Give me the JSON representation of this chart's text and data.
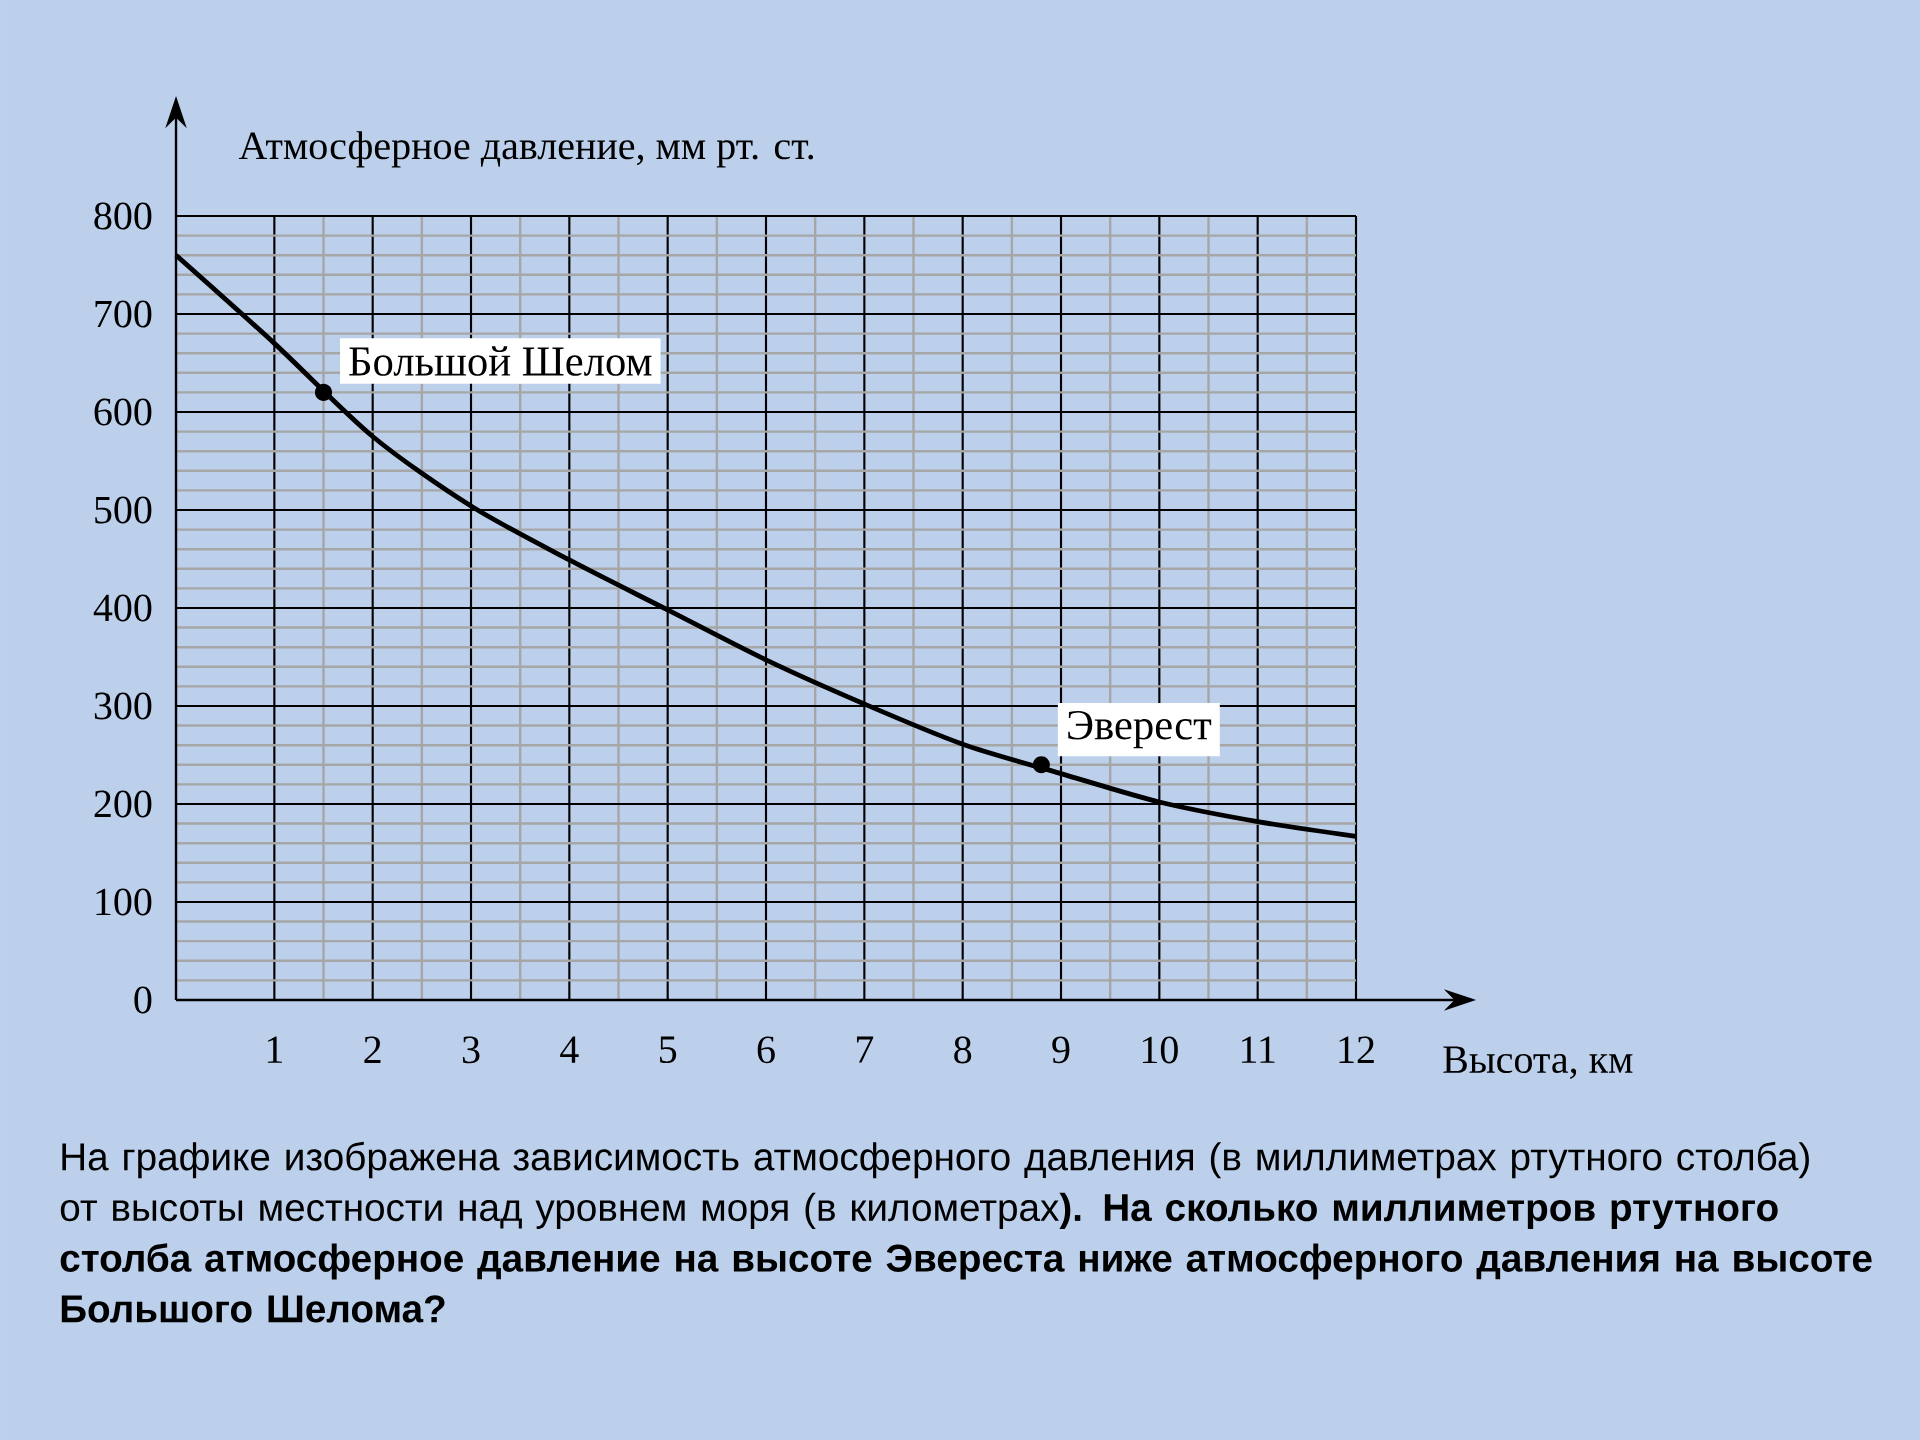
{
  "chart_data": {
    "type": "line",
    "xlabel": "Высота, км",
    "ylabel": "Атмосферное давление, мм  рт. ст.",
    "x": [
      0,
      1,
      2,
      3,
      4,
      5,
      6,
      7,
      8,
      9,
      10,
      11,
      12
    ],
    "series": [
      {
        "color": "#000000",
        "values": [
          760,
          670,
          575,
          504,
          449,
          398,
          347,
          302,
          261,
          231,
          202,
          182,
          167
        ]
      }
    ],
    "xlim": [
      0,
      12
    ],
    "ylim": [
      0,
      800
    ],
    "xticks": [
      1,
      2,
      3,
      4,
      5,
      6,
      7,
      8,
      9,
      10,
      11,
      12
    ],
    "yticks": [
      0,
      100,
      200,
      300,
      400,
      500,
      600,
      700,
      800
    ],
    "grid": true,
    "marker": "none",
    "line_style": "solid",
    "annotations": [
      {
        "text": "Большой Шелом",
        "x": 1.5,
        "y": 620
      },
      {
        "text": "Эверест",
        "x": 8.8,
        "y": 240
      },
      "На графике изображена зависимость атмосферного давления (в миллиметрах ртутного столба) от высоты местности над уровнем моря (в километрах**). На сколько миллиметров ртутного столба атмосферное давление на высоте Эвереста ниже атмосферного давления на высоте Большого Шелома?**"
    ]
  }
}
